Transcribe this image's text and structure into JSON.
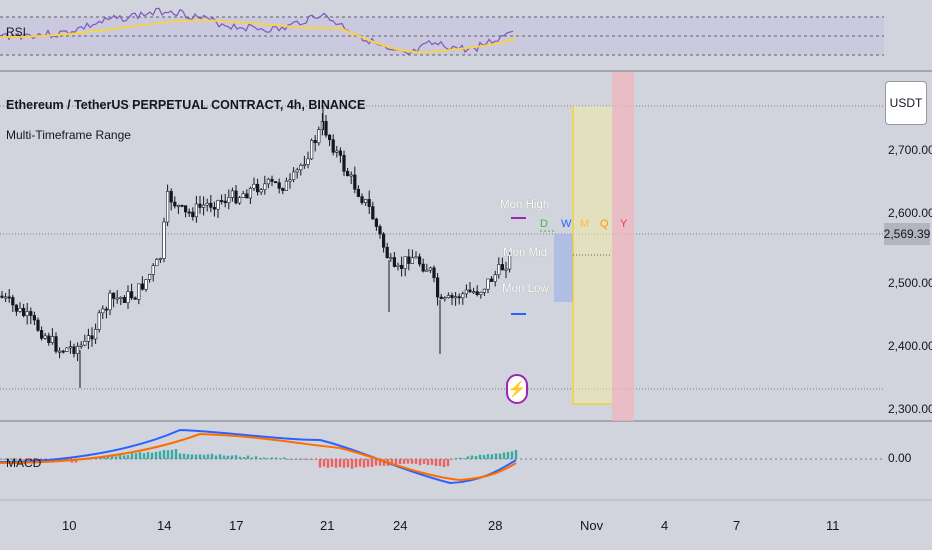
{
  "header": {
    "symbol_title": "Ethereum / TetherUS PERPETUAL CONTRACT, 4h, BINANCE",
    "indicator_name": "Multi-Timeframe Range",
    "currency_button": "USDT"
  },
  "rsi_panel": {
    "label": "RSI"
  },
  "macd_panel": {
    "label": "MACD",
    "zero_label": "0.00"
  },
  "price_axis": {
    "ticks": [
      "2,700.00",
      "2,600.00",
      "2,500.00",
      "2,400.00",
      "2,300.00"
    ],
    "current_price": "2,569.39"
  },
  "time_axis": {
    "ticks": [
      "10",
      "14",
      "17",
      "21",
      "24",
      "28",
      "Nov",
      "4",
      "7",
      "11"
    ]
  },
  "levels": {
    "mon_high": "Mon High",
    "mon_mid": "Mon Mid",
    "mon_low": "Mon Low"
  },
  "timeframes": [
    {
      "label": "D",
      "color": "#4caf50"
    },
    {
      "label": "W",
      "color": "#2962ff"
    },
    {
      "label": "M",
      "color": "#fbc02d"
    },
    {
      "label": "Q",
      "color": "#ff9800"
    },
    {
      "label": "Y",
      "color": "#f23645"
    }
  ],
  "colors": {
    "background": "#d1d4dc",
    "candle": "#131722",
    "rsi_line": "#7e57c2",
    "rsi_ma": "#fbd33a",
    "macd_line": "#2962ff",
    "signal_line": "#ff6d00",
    "hist_up": "#26a69a",
    "hist_down": "#ef5350",
    "mon_high": "#9c27b0",
    "mon_low": "#2962ff"
  },
  "icons": {
    "event": "lightning-bolt-icon"
  }
}
